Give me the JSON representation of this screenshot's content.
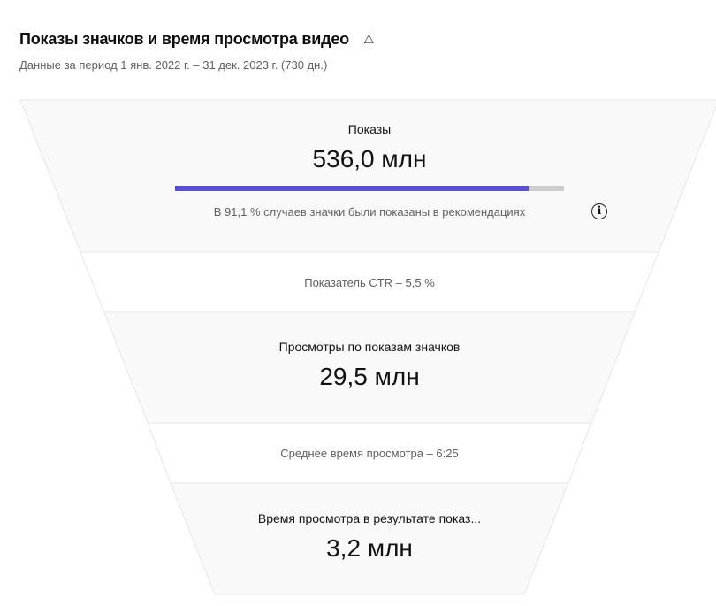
{
  "header": {
    "title": "Показы значков и время просмотра видео",
    "warning_icon": "warning-triangle-icon",
    "warning_glyph": "⚠",
    "subtitle": "Данные за период 1 янв. 2022 г. – 31 дек. 2023 г. (730 дн.)"
  },
  "funnel": {
    "impressions": {
      "label": "Показы",
      "value": "536,0 млн",
      "recommendation_share_percent": 91.1,
      "caption": "В 91,1 % случаев значки были показаны в рекомендациях",
      "info_icon": "info-icon",
      "info_glyph": "i"
    },
    "ctr": {
      "text": "Показатель CTR – 5,5 %"
    },
    "views": {
      "label": "Просмотры по показам значков",
      "value": "29,5 млн"
    },
    "avg_view": {
      "text": "Среднее время просмотра – 6:25"
    },
    "watch_time": {
      "label": "Время просмотра в результате показ...",
      "value": "3,2 млн"
    }
  },
  "colors": {
    "bar_fill": "#5a4fcf",
    "bar_track": "#cccccc",
    "section_gray": "#f9f9f9",
    "divider": "#e6e6e6"
  }
}
